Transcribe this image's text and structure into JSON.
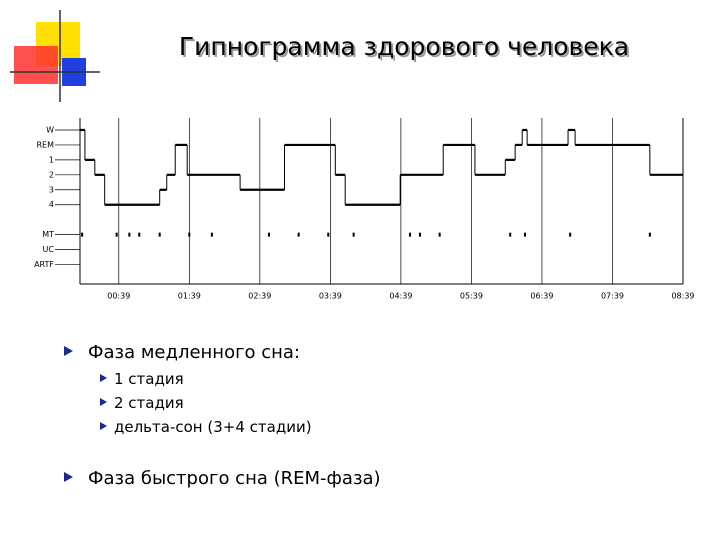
{
  "title": "Гипнограмма здорового человека",
  "chart_data": {
    "type": "step",
    "x": [
      0.1,
      0.17,
      0.31,
      0.45,
      1.23,
      1.33,
      1.45,
      1.62,
      2.37,
      3.0,
      3.72,
      3.86,
      4.64,
      5.25,
      5.7,
      6.13,
      6.27,
      6.37,
      6.44,
      7.02,
      7.12,
      8.18
    ],
    "series": [
      {
        "color": "#000000",
        "values": [
          6,
          4,
          3,
          1,
          2,
          3,
          5,
          3,
          2,
          5,
          3,
          1,
          3,
          5,
          3,
          4,
          5,
          6,
          5,
          6,
          5,
          3
        ]
      }
    ],
    "markers": {
      "x": [
        0.13,
        0.62,
        0.8,
        0.94,
        1.23,
        1.65,
        1.97,
        2.78,
        3.2,
        3.62,
        3.98,
        4.78,
        4.92,
        5.2,
        6.2,
        6.41,
        7.05,
        8.18
      ],
      "values": [
        -1,
        -1,
        -1,
        -1,
        -1,
        -1,
        -1,
        -1,
        -1,
        -1,
        -1,
        -1,
        -1,
        -1,
        -1,
        -1,
        -1,
        -1
      ]
    },
    "xlim": [
      0.1,
      8.65
    ],
    "ylim": [
      -4.3,
      6.8
    ],
    "xticks": [
      {
        "value": 0.65,
        "label": "00:39"
      },
      {
        "value": 1.65,
        "label": "01:39"
      },
      {
        "value": 2.65,
        "label": "02:39"
      },
      {
        "value": 3.65,
        "label": "03:39"
      },
      {
        "value": 4.65,
        "label": "04:39"
      },
      {
        "value": 5.65,
        "label": "05:39"
      },
      {
        "value": 6.65,
        "label": "06:39"
      },
      {
        "value": 7.65,
        "label": "07:39"
      },
      {
        "value": 8.65,
        "label": "08:39"
      }
    ],
    "yticks": [
      {
        "value": 6,
        "label": "W"
      },
      {
        "value": 5,
        "label": "REM"
      },
      {
        "value": 4,
        "label": "1"
      },
      {
        "value": 3,
        "label": "2"
      },
      {
        "value": 2,
        "label": "3"
      },
      {
        "value": 1,
        "label": "4"
      },
      {
        "value": -1,
        "label": "MT"
      },
      {
        "value": -2,
        "label": "UC"
      },
      {
        "value": -3,
        "label": "ARTF"
      }
    ],
    "grid": true
  },
  "bullets": [
    {
      "text": "Фаза медленного сна:",
      "items": [
        "1 стадия",
        "2 стадия",
        "дельта-сон (3+4 стадии)"
      ]
    },
    {
      "text": "Фаза быстрого сна (REM-фаза)",
      "items": []
    }
  ]
}
